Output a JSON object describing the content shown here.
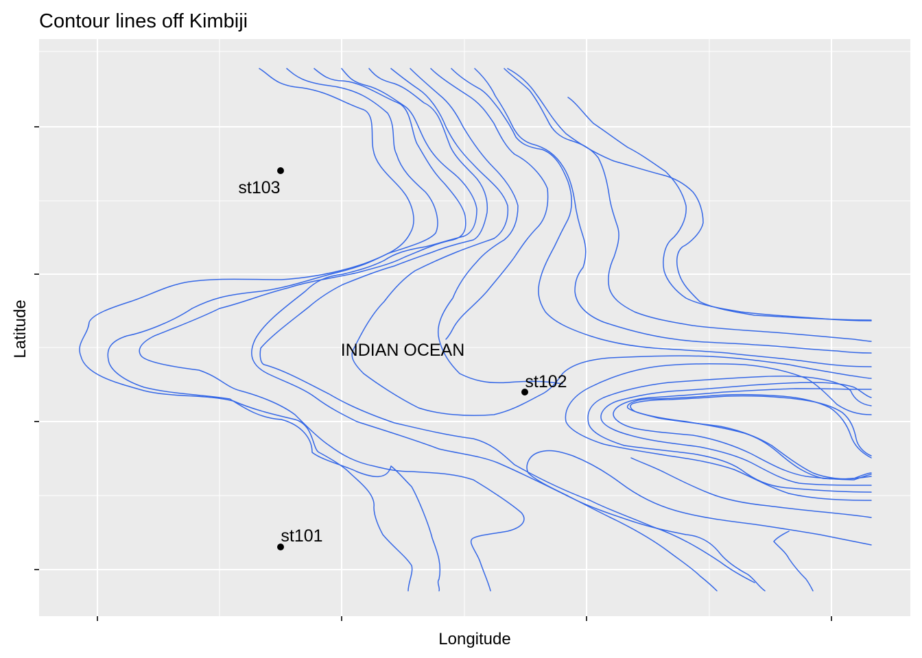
{
  "map": {
    "title": "Contour lines off Kimbiji",
    "xlabel": "Longitude",
    "ylabel": "Latitude",
    "region_label": "INDIAN OCEAN",
    "contour_color": "#3366e6",
    "panel_background": "#ebebeb",
    "grid": "on",
    "stations": [
      {
        "name": "st103"
      },
      {
        "name": "st102"
      },
      {
        "name": "st101"
      }
    ]
  }
}
